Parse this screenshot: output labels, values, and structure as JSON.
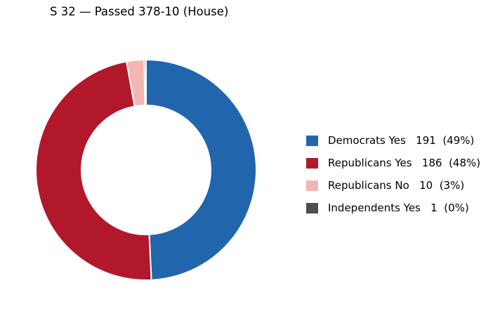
{
  "chart_data": {
    "type": "pie",
    "title": "S 32 — Passed 378-10 (House)",
    "donut": true,
    "legend_position": "right",
    "slices": [
      {
        "label": "Democrats Yes   191  (49%)",
        "value": 191,
        "color": "#2166ac"
      },
      {
        "label": "Republicans Yes   186  (48%)",
        "value": 186,
        "color": "#b2182b"
      },
      {
        "label": "Republicans No   10  (3%)",
        "value": 10,
        "color": "#f4b6b2"
      },
      {
        "label": "Independents Yes   1  (0%)",
        "value": 1,
        "color": "#4d4d4d"
      }
    ]
  }
}
